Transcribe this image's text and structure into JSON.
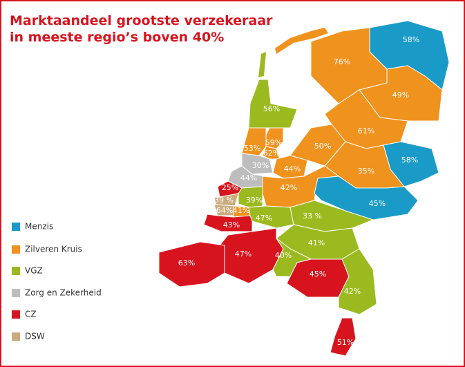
{
  "title": [
    "Marktaandeel grootste verzekeraar",
    "in meeste regio’s boven 40%"
  ],
  "legend": [
    {
      "name": "Menzis",
      "color": "#1a9bc7"
    },
    {
      "name": "Zilveren Kruis",
      "color": "#f0921e"
    },
    {
      "name": "VGZ",
      "color": "#9bba1f"
    },
    {
      "name": "Zorg en Zekerheid",
      "color": "#bdbdbd"
    },
    {
      "name": "CZ",
      "color": "#d7141e"
    },
    {
      "name": "DSW",
      "color": "#c9ab7e"
    }
  ],
  "regions": [
    {
      "label": "58%",
      "insurer": 0
    },
    {
      "label": "76%",
      "insurer": 1
    },
    {
      "label": "49%",
      "insurer": 1
    },
    {
      "label": "56%",
      "insurer": 2
    },
    {
      "label": "61%",
      "insurer": 1
    },
    {
      "label": "59%",
      "insurer": 1
    },
    {
      "label": "53%",
      "insurer": 1
    },
    {
      "label": "62%",
      "insurer": 1
    },
    {
      "label": "50%",
      "insurer": 1
    },
    {
      "label": "30%",
      "insurer": 3
    },
    {
      "label": "58%",
      "insurer": 0
    },
    {
      "label": "44%",
      "insurer": 1
    },
    {
      "label": "35%",
      "insurer": 1
    },
    {
      "label": "44%",
      "insurer": 3
    },
    {
      "label": "42%",
      "insurer": 1
    },
    {
      "label": "25%",
      "insurer": 4
    },
    {
      "label": "39 %",
      "insurer": 5
    },
    {
      "label": "39%",
      "insurer": 2
    },
    {
      "label": "64%",
      "insurer": 5
    },
    {
      "label": "41%",
      "insurer": 1
    },
    {
      "label": "45%",
      "insurer": 0
    },
    {
      "label": "47%",
      "insurer": 2
    },
    {
      "label": "33 %",
      "insurer": 2
    },
    {
      "label": "43%",
      "insurer": 4
    },
    {
      "label": "41%",
      "insurer": 2
    },
    {
      "label": "47%",
      "insurer": 4
    },
    {
      "label": "40%",
      "insurer": 2
    },
    {
      "label": "63%",
      "insurer": 4
    },
    {
      "label": "45%",
      "insurer": 4
    },
    {
      "label": "42%",
      "insurer": 2
    },
    {
      "label": "51%",
      "insurer": 4
    }
  ]
}
